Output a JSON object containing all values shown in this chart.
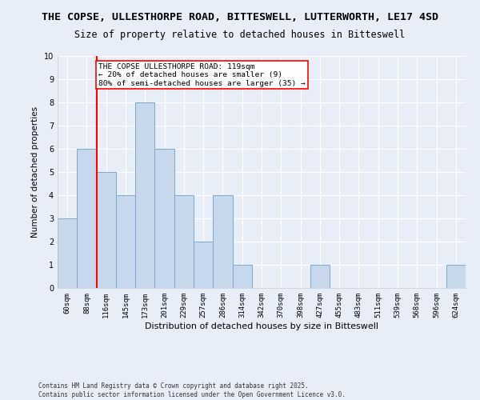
{
  "title_line1": "THE COPSE, ULLESTHORPE ROAD, BITTESWELL, LUTTERWORTH, LE17 4SD",
  "title_line2": "Size of property relative to detached houses in Bitteswell",
  "xlabel": "Distribution of detached houses by size in Bitteswell",
  "ylabel": "Number of detached properties",
  "categories": [
    "60sqm",
    "88sqm",
    "116sqm",
    "145sqm",
    "173sqm",
    "201sqm",
    "229sqm",
    "257sqm",
    "286sqm",
    "314sqm",
    "342sqm",
    "370sqm",
    "398sqm",
    "427sqm",
    "455sqm",
    "483sqm",
    "511sqm",
    "539sqm",
    "568sqm",
    "596sqm",
    "624sqm"
  ],
  "values": [
    3,
    6,
    5,
    4,
    8,
    6,
    4,
    2,
    4,
    1,
    0,
    0,
    0,
    1,
    0,
    0,
    0,
    0,
    0,
    0,
    1
  ],
  "bar_color": "#c8d8ec",
  "bar_edge_color": "#7aaac8",
  "red_line_index": 2,
  "annotation_text": "THE COPSE ULLESTHORPE ROAD: 119sqm\n← 20% of detached houses are smaller (9)\n80% of semi-detached houses are larger (35) →",
  "annotation_box_color": "white",
  "annotation_box_edge_color": "red",
  "ylim": [
    0,
    10
  ],
  "yticks": [
    0,
    1,
    2,
    3,
    4,
    5,
    6,
    7,
    8,
    9,
    10
  ],
  "background_color": "#e8eef8",
  "grid_color": "white",
  "footer": "Contains HM Land Registry data © Crown copyright and database right 2025.\nContains public sector information licensed under the Open Government Licence v3.0.",
  "title_fontsize": 9.5,
  "subtitle_fontsize": 8.5,
  "annotation_fontsize": 6.8,
  "ylabel_fontsize": 7.5,
  "xlabel_fontsize": 8,
  "tick_fontsize": 6.5,
  "footer_fontsize": 5.5
}
